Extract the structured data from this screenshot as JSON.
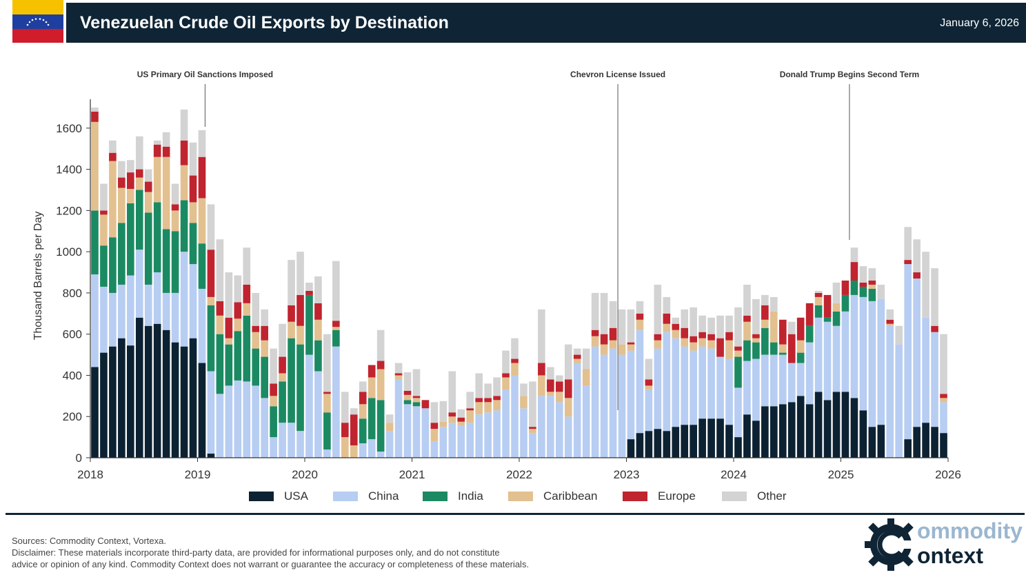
{
  "header": {
    "title": "Venezuelan Crude Oil Exports by Destination",
    "date": "January 6, 2026",
    "flag_icon": "venezuela-flag-icon"
  },
  "chart_data": {
    "type": "bar",
    "stacked": true,
    "title": "Venezuelan Crude Oil Exports by Destination",
    "ylabel": "Thousand Barrels per Day",
    "xlabel": "",
    "ylim": [
      0,
      1750
    ],
    "yticks": [
      0,
      200,
      400,
      600,
      800,
      1000,
      1200,
      1400,
      1600
    ],
    "x_start": 2018.0,
    "x_end": 2026.0,
    "xticks": [
      "2018",
      "2019",
      "2020",
      "2021",
      "2022",
      "2023",
      "2024",
      "2025",
      "2026"
    ],
    "series_names": [
      "USA",
      "China",
      "India",
      "Caribbean",
      "Europe",
      "Other"
    ],
    "series_colors": [
      "#0c2232",
      "#b7cdf2",
      "#1b8a62",
      "#e3c08f",
      "#c0242f",
      "#d3d3d3"
    ],
    "months": [
      [
        440,
        450,
        310,
        430,
        50,
        20
      ],
      [
        510,
        320,
        200,
        150,
        20,
        130
      ],
      [
        540,
        260,
        270,
        370,
        40,
        60
      ],
      [
        580,
        260,
        300,
        170,
        50,
        80
      ],
      [
        545,
        340,
        350,
        70,
        80,
        60
      ],
      [
        680,
        330,
        290,
        60,
        40,
        160
      ],
      [
        640,
        200,
        350,
        100,
        50,
        60
      ],
      [
        650,
        250,
        340,
        220,
        60,
        20
      ],
      [
        620,
        180,
        310,
        350,
        50,
        70
      ],
      [
        560,
        240,
        300,
        100,
        30,
        100
      ],
      [
        540,
        460,
        250,
        170,
        120,
        150
      ],
      [
        580,
        360,
        200,
        100,
        130,
        160
      ],
      [
        460,
        360,
        220,
        220,
        200,
        130
      ],
      [
        20,
        400,
        320,
        40,
        230,
        220
      ],
      [
        0,
        310,
        290,
        90,
        70,
        300
      ],
      [
        0,
        350,
        200,
        30,
        100,
        220
      ],
      [
        0,
        375,
        240,
        60,
        80,
        130
      ],
      [
        0,
        370,
        320,
        60,
        90,
        180
      ],
      [
        0,
        350,
        180,
        80,
        30,
        160
      ],
      [
        0,
        290,
        200,
        80,
        70,
        80
      ],
      [
        0,
        100,
        150,
        50,
        60,
        170
      ],
      [
        0,
        170,
        200,
        40,
        80,
        160
      ],
      [
        0,
        170,
        410,
        80,
        80,
        220
      ],
      [
        0,
        130,
        420,
        90,
        150,
        210
      ],
      [
        0,
        500,
        290,
        0,
        20,
        40
      ],
      [
        0,
        420,
        150,
        100,
        80,
        130
      ],
      [
        0,
        40,
        180,
        90,
        10,
        280
      ],
      [
        0,
        540,
        80,
        15,
        30,
        290
      ],
      [
        0,
        0,
        0,
        100,
        70,
        150
      ],
      [
        0,
        0,
        0,
        60,
        150,
        30
      ],
      [
        0,
        70,
        120,
        70,
        60,
        50
      ],
      [
        0,
        90,
        200,
        100,
        60,
        0
      ],
      [
        0,
        30,
        250,
        150,
        40,
        150
      ],
      [
        0,
        130,
        0,
        40,
        0,
        40
      ],
      [
        0,
        380,
        0,
        20,
        10,
        50
      ],
      [
        0,
        260,
        20,
        25,
        20,
        90
      ],
      [
        0,
        250,
        20,
        20,
        10,
        130
      ],
      [
        0,
        240,
        0,
        0,
        40,
        0
      ],
      [
        0,
        80,
        0,
        60,
        30,
        100
      ],
      [
        0,
        150,
        0,
        25,
        0,
        100
      ],
      [
        0,
        170,
        0,
        30,
        20,
        200
      ],
      [
        0,
        155,
        0,
        20,
        20,
        40
      ],
      [
        0,
        170,
        0,
        60,
        10,
        80
      ],
      [
        0,
        210,
        0,
        60,
        20,
        120
      ],
      [
        0,
        220,
        0,
        50,
        20,
        70
      ],
      [
        0,
        230,
        0,
        50,
        20,
        90
      ],
      [
        0,
        330,
        0,
        60,
        20,
        110
      ],
      [
        0,
        400,
        0,
        60,
        20,
        100
      ],
      [
        0,
        240,
        0,
        60,
        0,
        60
      ],
      [
        0,
        120,
        0,
        20,
        10,
        220
      ],
      [
        0,
        300,
        0,
        100,
        60,
        260
      ],
      [
        0,
        300,
        0,
        20,
        60,
        60
      ],
      [
        0,
        270,
        0,
        50,
        50,
        30
      ],
      [
        0,
        200,
        0,
        90,
        90,
        170
      ],
      [
        0,
        460,
        0,
        20,
        20,
        30
      ],
      [
        0,
        350,
        0,
        80,
        0,
        100
      ],
      [
        0,
        540,
        0,
        50,
        30,
        180
      ],
      [
        0,
        500,
        0,
        50,
        50,
        200
      ],
      [
        0,
        530,
        0,
        40,
        60,
        130
      ],
      [
        0,
        500,
        0,
        50,
        0,
        170
      ],
      [
        90,
        430,
        0,
        30,
        10,
        160
      ],
      [
        120,
        500,
        0,
        50,
        30,
        60
      ],
      [
        130,
        200,
        0,
        20,
        30,
        100
      ],
      [
        140,
        390,
        0,
        40,
        30,
        240
      ],
      [
        130,
        480,
        0,
        40,
        50,
        80
      ],
      [
        150,
        430,
        0,
        40,
        30,
        30
      ],
      [
        160,
        380,
        0,
        40,
        50,
        90
      ],
      [
        160,
        360,
        0,
        40,
        30,
        140
      ],
      [
        190,
        350,
        0,
        40,
        30,
        80
      ],
      [
        190,
        340,
        0,
        40,
        30,
        80
      ],
      [
        190,
        300,
        0,
        0,
        90,
        110
      ],
      [
        160,
        320,
        0,
        90,
        40,
        80
      ],
      [
        100,
        240,
        150,
        30,
        20,
        190
      ],
      [
        210,
        260,
        100,
        90,
        30,
        150
      ],
      [
        180,
        300,
        80,
        20,
        20,
        170
      ],
      [
        250,
        250,
        130,
        40,
        70,
        50
      ],
      [
        250,
        250,
        60,
        150,
        0,
        70
      ],
      [
        260,
        240,
        10,
        40,
        120,
        0
      ],
      [
        270,
        190,
        0,
        0,
        140,
        60
      ],
      [
        300,
        160,
        50,
        60,
        110,
        0
      ],
      [
        260,
        300,
        80,
        0,
        110,
        0
      ],
      [
        320,
        360,
        60,
        40,
        20,
        10
      ],
      [
        280,
        380,
        20,
        0,
        110,
        0
      ],
      [
        320,
        320,
        70,
        40,
        0,
        100
      ],
      [
        320,
        390,
        80,
        0,
        70,
        0
      ],
      [
        290,
        500,
        70,
        0,
        90,
        70
      ],
      [
        230,
        550,
        50,
        0,
        20,
        80
      ],
      [
        150,
        610,
        60,
        20,
        20,
        60
      ],
      [
        160,
        610,
        0,
        0,
        0,
        70
      ],
      [
        0,
        640,
        0,
        10,
        20,
        50
      ],
      [
        0,
        550,
        0,
        0,
        0,
        90
      ],
      [
        90,
        850,
        0,
        0,
        20,
        160
      ],
      [
        150,
        720,
        0,
        0,
        30,
        160
      ],
      [
        170,
        510,
        0,
        0,
        0,
        320
      ],
      [
        150,
        460,
        0,
        0,
        30,
        280
      ],
      [
        120,
        150,
        0,
        20,
        20,
        290
      ]
    ],
    "annotations": [
      {
        "label": "US Primary Oil Sanctions Imposed",
        "x": 2019.07
      },
      {
        "label": "Chevron License Issued",
        "x": 2022.92
      },
      {
        "label": "Donald Trump Begins Second Term",
        "x": 2025.08
      }
    ],
    "legend_position": "bottom"
  },
  "footer": {
    "sources": "Sources: Commodity Context, Vortexa.",
    "disclaimer_line1": "Disclaimer: These materials incorporate third-party data, are provided for informational purposes only, and do not constitute",
    "disclaimer_line2": "advice or opinion of any kind. Commodity Context does not warrant or guarantee the accuracy or completeness of these materials."
  },
  "logo": {
    "line1": "ommodity",
    "line2": "ontext",
    "icon": "gear-c-logo-icon"
  }
}
